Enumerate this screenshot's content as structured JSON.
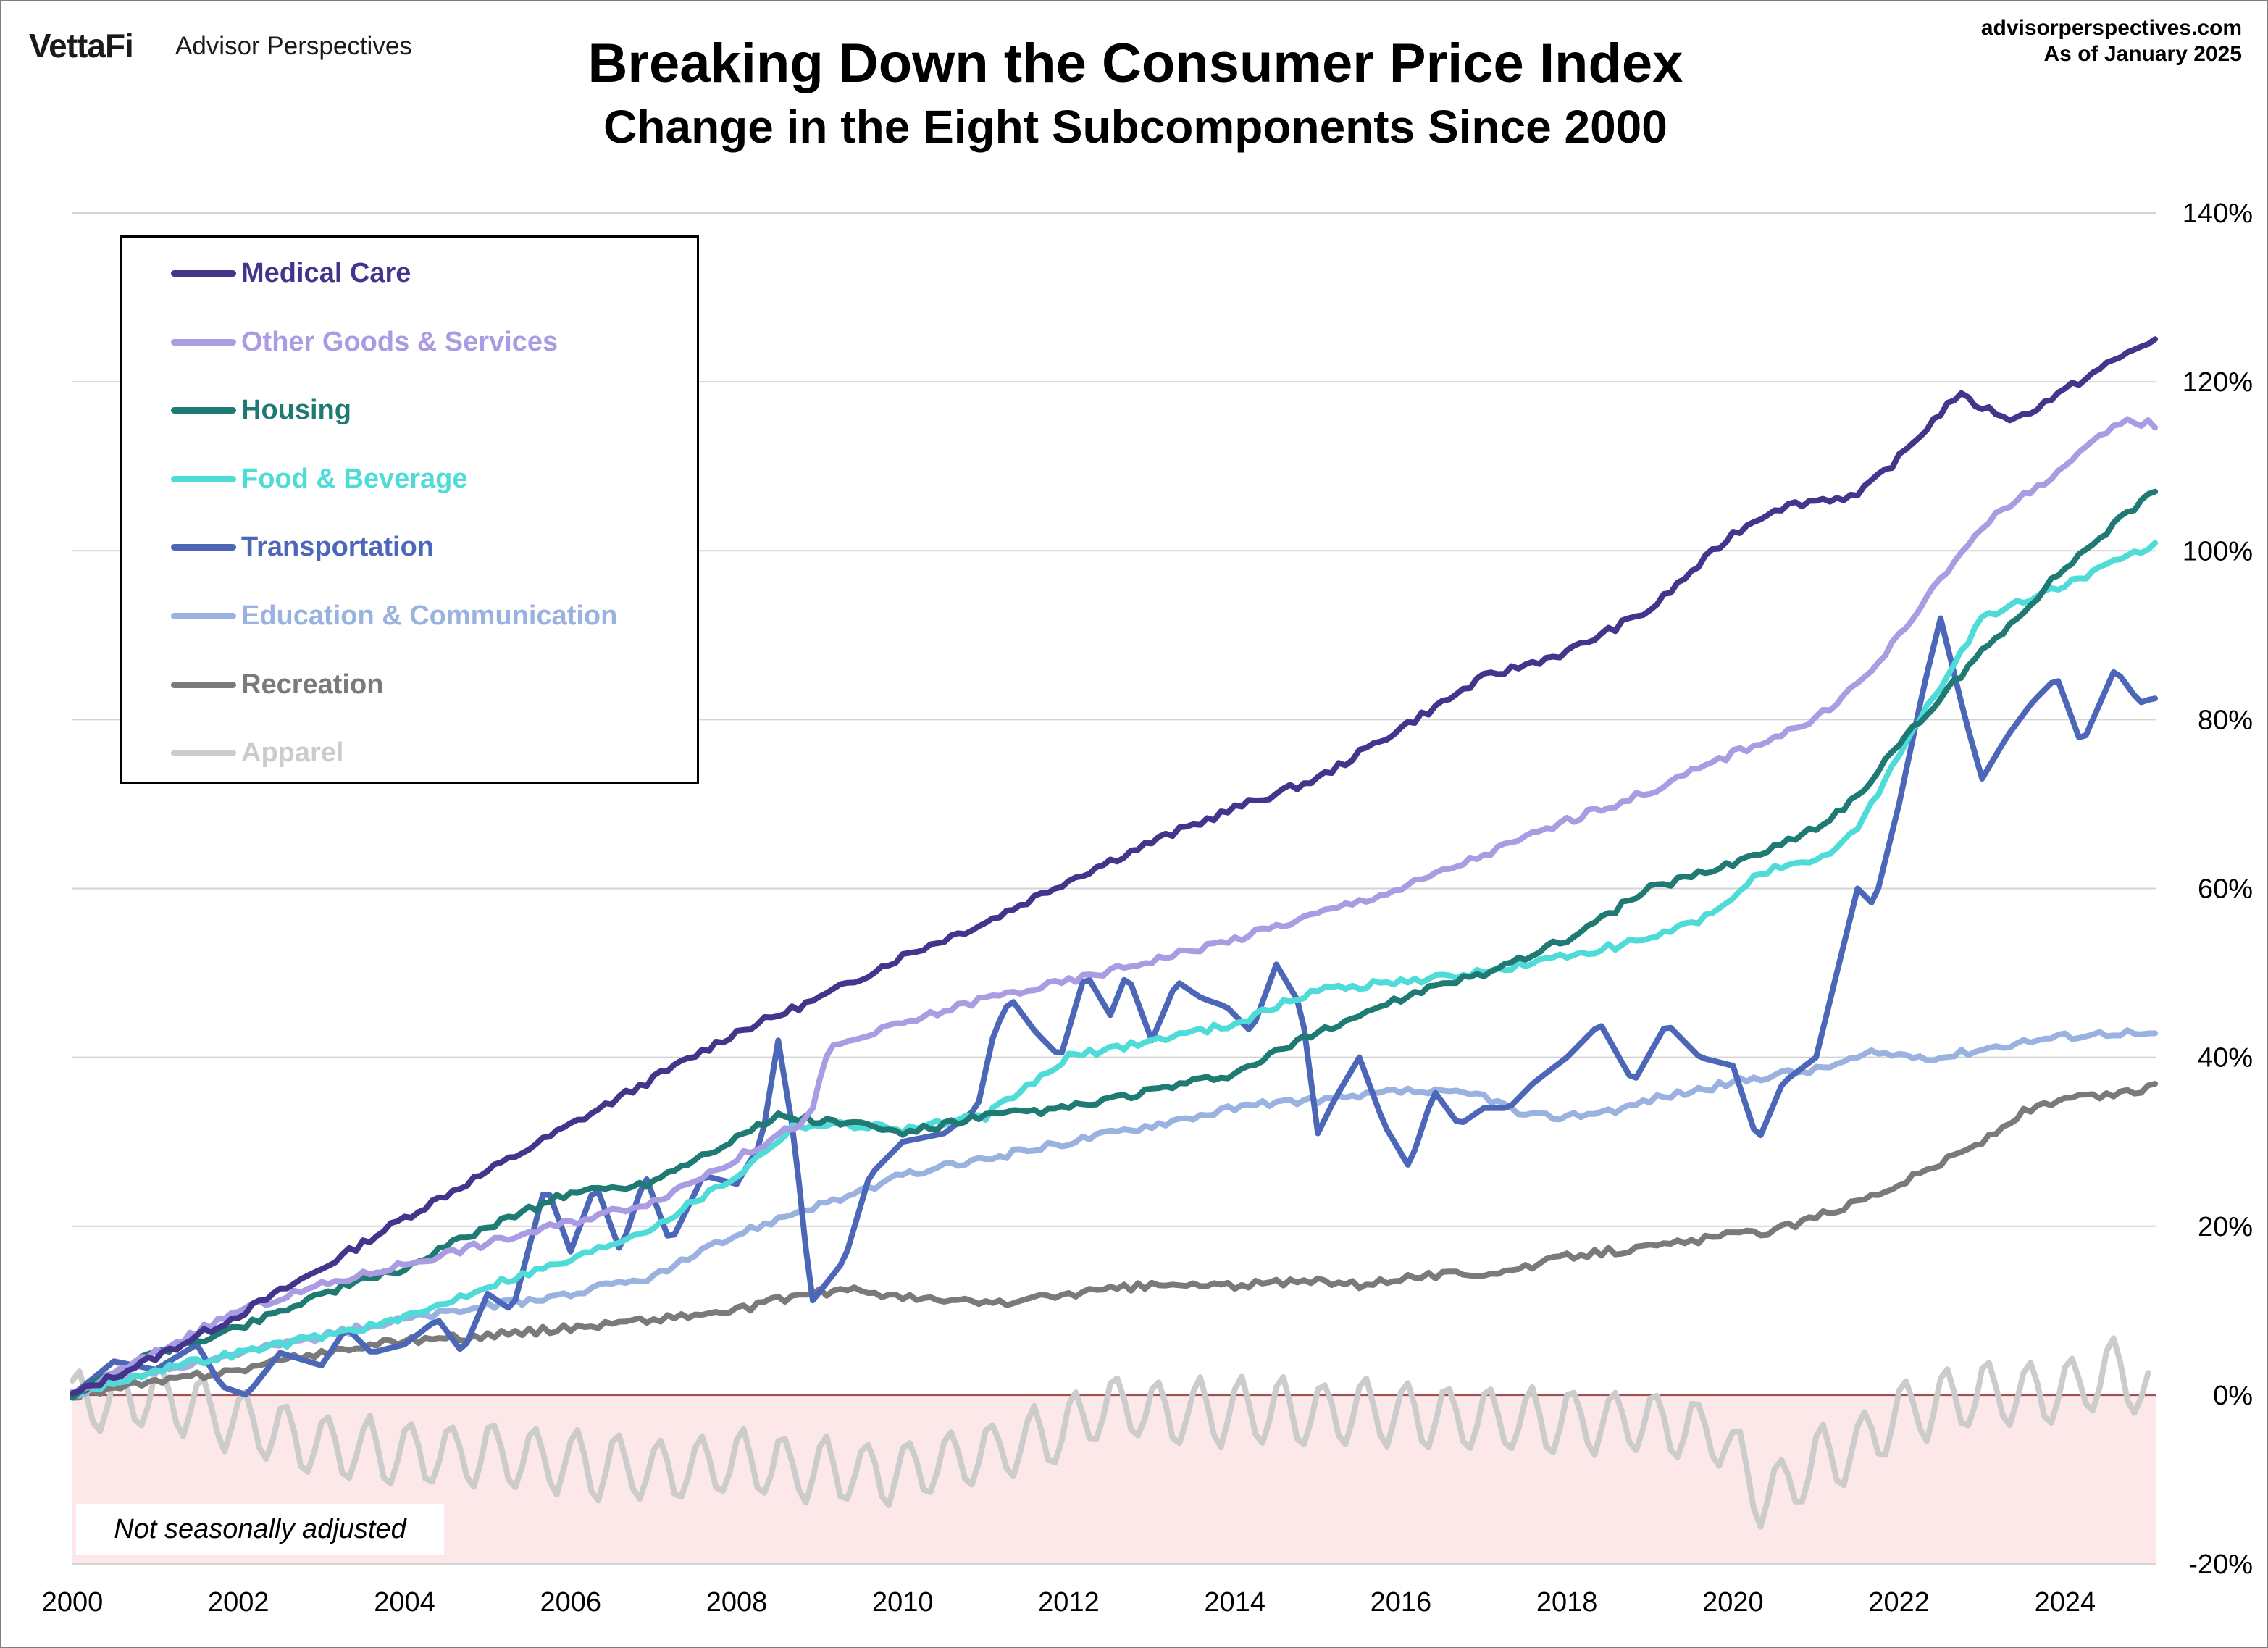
{
  "header": {
    "logo_brand": "VettaFi",
    "logo_product": "Advisor Perspectives",
    "source_site": "advisorperspectives.com",
    "as_of": "As of January 2025"
  },
  "note": "Not seasonally adjusted",
  "chart_data": {
    "type": "line",
    "title": "Breaking Down the Consumer Price Index",
    "subtitle": "Change in the Eight Subcomponents Since 2000",
    "xlabel": "",
    "ylabel": "",
    "xlim": [
      2000,
      2025.1
    ],
    "ylim": [
      -20,
      140
    ],
    "x_ticks": [
      2000,
      2002,
      2004,
      2006,
      2008,
      2010,
      2012,
      2014,
      2016,
      2018,
      2020,
      2022,
      2024
    ],
    "y_ticks": [
      -20,
      0,
      20,
      40,
      60,
      80,
      100,
      120,
      140
    ],
    "y_tick_labels": [
      "-20%",
      "0%",
      "20%",
      "40%",
      "60%",
      "80%",
      "100%",
      "120%",
      "140%"
    ],
    "y_axis_side": "right",
    "grid": "horizontal",
    "negative_region_shading": "#fce8e8",
    "legend_position": "top-left",
    "series": [
      {
        "name": "Medical Care",
        "color": "#43348c",
        "points": [
          [
            2000,
            0
          ],
          [
            2001,
            4.5
          ],
          [
            2002,
            9.5
          ],
          [
            2003,
            15
          ],
          [
            2004,
            21
          ],
          [
            2005,
            26.5
          ],
          [
            2006,
            32
          ],
          [
            2007,
            37.5
          ],
          [
            2008,
            43
          ],
          [
            2009,
            47
          ],
          [
            2010,
            52
          ],
          [
            2011,
            56
          ],
          [
            2012,
            61
          ],
          [
            2013,
            65.5
          ],
          [
            2014,
            69.5
          ],
          [
            2015,
            73
          ],
          [
            2016,
            79
          ],
          [
            2017,
            85
          ],
          [
            2018,
            88
          ],
          [
            2019,
            93
          ],
          [
            2020,
            102
          ],
          [
            2020.5,
            105
          ],
          [
            2021,
            106
          ],
          [
            2021.5,
            106.5
          ],
          [
            2022,
            111
          ],
          [
            2022.7,
            118.5
          ],
          [
            2023,
            117
          ],
          [
            2023.4,
            115.5
          ],
          [
            2024,
            119
          ],
          [
            2024.5,
            122
          ],
          [
            2025.05,
            125
          ]
        ]
      },
      {
        "name": "Other Goods & Services",
        "color": "#ab9be3",
        "points": [
          [
            2000,
            0
          ],
          [
            2001,
            5
          ],
          [
            2002,
            10
          ],
          [
            2003,
            13
          ],
          [
            2004,
            15.5
          ],
          [
            2005,
            18
          ],
          [
            2006,
            20.5
          ],
          [
            2007,
            23
          ],
          [
            2008,
            28
          ],
          [
            2008.9,
            33
          ],
          [
            2009.1,
            41
          ],
          [
            2010,
            44
          ],
          [
            2011,
            47
          ],
          [
            2012,
            49
          ],
          [
            2013,
            51.5
          ],
          [
            2014,
            54
          ],
          [
            2015,
            57
          ],
          [
            2016,
            60
          ],
          [
            2017,
            64
          ],
          [
            2018,
            68
          ],
          [
            2019,
            71.5
          ],
          [
            2020,
            76
          ],
          [
            2021,
            80
          ],
          [
            2021.7,
            86
          ],
          [
            2022,
            90
          ],
          [
            2023,
            103
          ],
          [
            2024,
            110
          ],
          [
            2024.7,
            115.5
          ],
          [
            2025.05,
            115
          ]
        ]
      },
      {
        "name": "Housing",
        "color": "#1e7a72",
        "points": [
          [
            2000,
            0
          ],
          [
            2001,
            5
          ],
          [
            2002,
            8
          ],
          [
            2003,
            12
          ],
          [
            2004,
            15
          ],
          [
            2005,
            20
          ],
          [
            2006,
            24
          ],
          [
            2006.9,
            25
          ],
          [
            2007.5,
            28
          ],
          [
            2008.5,
            33
          ],
          [
            2009.5,
            32
          ],
          [
            2010,
            31
          ],
          [
            2011,
            33
          ],
          [
            2012,
            34
          ],
          [
            2013,
            36
          ],
          [
            2014,
            38
          ],
          [
            2015,
            43
          ],
          [
            2016,
            47
          ],
          [
            2017,
            50
          ],
          [
            2018,
            54
          ],
          [
            2019,
            60
          ],
          [
            2020,
            63
          ],
          [
            2020.5,
            65
          ],
          [
            2021,
            67
          ],
          [
            2021.5,
            71
          ],
          [
            2022,
            77
          ],
          [
            2023,
            88
          ],
          [
            2024,
            98
          ],
          [
            2025.05,
            107
          ]
        ]
      },
      {
        "name": "Food & Beverage",
        "color": "#4fdcd8",
        "points": [
          [
            2000,
            0
          ],
          [
            2001,
            3
          ],
          [
            2002,
            5
          ],
          [
            2003,
            7
          ],
          [
            2004,
            9
          ],
          [
            2005,
            13
          ],
          [
            2006,
            16
          ],
          [
            2007,
            20
          ],
          [
            2008,
            26
          ],
          [
            2008.7,
            32
          ],
          [
            2009.5,
            32
          ],
          [
            2010,
            31.5
          ],
          [
            2011,
            33
          ],
          [
            2012,
            40
          ],
          [
            2013,
            42
          ],
          [
            2014,
            44
          ],
          [
            2015,
            48
          ],
          [
            2016,
            49
          ],
          [
            2017,
            50
          ],
          [
            2018,
            52
          ],
          [
            2019,
            54
          ],
          [
            2019.8,
            57
          ],
          [
            2020.3,
            62
          ],
          [
            2021,
            63
          ],
          [
            2021.5,
            67
          ],
          [
            2022,
            76
          ],
          [
            2022.5,
            84
          ],
          [
            2023,
            92
          ],
          [
            2024,
            96
          ],
          [
            2025.05,
            100.5
          ]
        ]
      },
      {
        "name": "Transportation",
        "color": "#4d67b8",
        "points": [
          [
            2000,
            0
          ],
          [
            2000.5,
            4
          ],
          [
            2001,
            3
          ],
          [
            2001.5,
            6
          ],
          [
            2001.8,
            1
          ],
          [
            2002.1,
            0
          ],
          [
            2002.5,
            5
          ],
          [
            2003,
            3.5
          ],
          [
            2003.3,
            8
          ],
          [
            2003.6,
            5
          ],
          [
            2004,
            6
          ],
          [
            2004.4,
            9
          ],
          [
            2004.7,
            5
          ],
          [
            2005,
            12
          ],
          [
            2005.3,
            10
          ],
          [
            2005.7,
            25
          ],
          [
            2006,
            17
          ],
          [
            2006.3,
            25
          ],
          [
            2006.6,
            17
          ],
          [
            2006.9,
            26
          ],
          [
            2007.2,
            18
          ],
          [
            2007.6,
            26
          ],
          [
            2008,
            25
          ],
          [
            2008.3,
            30
          ],
          [
            2008.5,
            42
          ],
          [
            2008.7,
            30
          ],
          [
            2008.9,
            11
          ],
          [
            2009.3,
            16
          ],
          [
            2009.6,
            26
          ],
          [
            2010,
            30
          ],
          [
            2010.5,
            31
          ],
          [
            2010.9,
            34
          ],
          [
            2011.1,
            43
          ],
          [
            2011.3,
            47
          ],
          [
            2011.6,
            43
          ],
          [
            2011.9,
            40
          ],
          [
            2012.2,
            50
          ],
          [
            2012.5,
            45
          ],
          [
            2012.7,
            50
          ],
          [
            2013,
            42
          ],
          [
            2013.3,
            49
          ],
          [
            2013.6,
            47
          ],
          [
            2013.9,
            46
          ],
          [
            2014.2,
            43
          ],
          [
            2014.5,
            51
          ],
          [
            2014.8,
            46
          ],
          [
            2015,
            31
          ],
          [
            2015.2,
            35
          ],
          [
            2015.5,
            40
          ],
          [
            2015.8,
            32
          ],
          [
            2016.1,
            27
          ],
          [
            2016.4,
            36
          ],
          [
            2016.7,
            32
          ],
          [
            2017,
            34
          ],
          [
            2017.3,
            34
          ],
          [
            2017.6,
            37
          ],
          [
            2018,
            40
          ],
          [
            2018.4,
            44
          ],
          [
            2018.8,
            37
          ],
          [
            2019.2,
            44
          ],
          [
            2019.6,
            40
          ],
          [
            2020,
            39
          ],
          [
            2020.3,
            30
          ],
          [
            2020.6,
            37
          ],
          [
            2021,
            40
          ],
          [
            2021.5,
            60
          ],
          [
            2021.7,
            58
          ],
          [
            2022,
            70
          ],
          [
            2022.3,
            84
          ],
          [
            2022.5,
            92
          ],
          [
            2022.8,
            80
          ],
          [
            2023,
            73
          ],
          [
            2023.3,
            78
          ],
          [
            2023.6,
            82
          ],
          [
            2023.9,
            85
          ],
          [
            2024.2,
            77
          ],
          [
            2024.6,
            86
          ],
          [
            2024.9,
            82
          ],
          [
            2025.05,
            82.5
          ]
        ]
      },
      {
        "name": "Education & Communication",
        "color": "#99b2e0",
        "points": [
          [
            2000,
            0
          ],
          [
            2001,
            3
          ],
          [
            2002,
            5
          ],
          [
            2003,
            7
          ],
          [
            2004,
            9
          ],
          [
            2005,
            10.5
          ],
          [
            2006,
            12
          ],
          [
            2007,
            14
          ],
          [
            2008,
            19
          ],
          [
            2008.8,
            22
          ],
          [
            2009.5,
            24
          ],
          [
            2010,
            26
          ],
          [
            2011,
            28
          ],
          [
            2012,
            30
          ],
          [
            2013,
            32
          ],
          [
            2014,
            34
          ],
          [
            2014.9,
            35
          ],
          [
            2015.3,
            35
          ],
          [
            2016,
            36
          ],
          [
            2017,
            35.5
          ],
          [
            2017.5,
            33
          ],
          [
            2018,
            33
          ],
          [
            2018.7,
            34
          ],
          [
            2019,
            35
          ],
          [
            2019.5,
            36
          ],
          [
            2020,
            37
          ],
          [
            2020.5,
            38
          ],
          [
            2021,
            38.5
          ],
          [
            2021.7,
            40.5
          ],
          [
            2022.5,
            40
          ],
          [
            2023,
            41
          ],
          [
            2023.6,
            42
          ],
          [
            2024,
            42.5
          ],
          [
            2024.7,
            43
          ],
          [
            2025.05,
            42.5
          ]
        ]
      },
      {
        "name": "Recreation",
        "color": "#7a7a7a",
        "points": [
          [
            2000,
            0
          ],
          [
            2001,
            1.5
          ],
          [
            2002,
            3
          ],
          [
            2003,
            5
          ],
          [
            2004,
            6.5
          ],
          [
            2005,
            7
          ],
          [
            2006,
            8
          ],
          [
            2007,
            9
          ],
          [
            2008,
            10
          ],
          [
            2008.8,
            12
          ],
          [
            2009.5,
            12.5
          ],
          [
            2010,
            11.5
          ],
          [
            2010.9,
            11
          ],
          [
            2011.3,
            11
          ],
          [
            2012,
            12
          ],
          [
            2013,
            13
          ],
          [
            2014,
            13
          ],
          [
            2015,
            13.5
          ],
          [
            2015.5,
            13
          ],
          [
            2016,
            14
          ],
          [
            2017,
            14.5
          ],
          [
            2017.5,
            15
          ],
          [
            2018,
            16.5
          ],
          [
            2019,
            17.5
          ],
          [
            2020,
            19
          ],
          [
            2020.5,
            19.5
          ],
          [
            2021,
            21
          ],
          [
            2022,
            25
          ],
          [
            2023,
            30
          ],
          [
            2023.5,
            33.5
          ],
          [
            2024,
            35
          ],
          [
            2024.5,
            35.5
          ],
          [
            2024.9,
            36
          ],
          [
            2025.05,
            37
          ]
        ]
      },
      {
        "name": "Apparel",
        "color": "#cccccc",
        "points": [
          [
            2000,
            -1
          ],
          [
            2001,
            0
          ],
          [
            2002,
            -3
          ],
          [
            2003,
            -6
          ],
          [
            2004,
            -7
          ],
          [
            2005,
            -7
          ],
          [
            2006,
            -8
          ],
          [
            2007,
            -9
          ],
          [
            2008,
            -8
          ],
          [
            2009,
            -9
          ],
          [
            2010,
            -9
          ],
          [
            2011,
            -7
          ],
          [
            2012,
            -4
          ],
          [
            2012.5,
            -1
          ],
          [
            2013,
            -2
          ],
          [
            2014,
            -2
          ],
          [
            2015,
            -2
          ],
          [
            2016,
            -2
          ],
          [
            2017,
            -3
          ],
          [
            2018,
            -3
          ],
          [
            2019,
            -3
          ],
          [
            2019.9,
            -5
          ],
          [
            2020.3,
            -12
          ],
          [
            2020.6,
            -11
          ],
          [
            2021,
            -8
          ],
          [
            2021.5,
            -6
          ],
          [
            2022,
            -2
          ],
          [
            2022.5,
            -1
          ],
          [
            2023,
            0
          ],
          [
            2024,
            0.5
          ],
          [
            2024.7,
            3
          ],
          [
            2025.05,
            -1
          ]
        ]
      }
    ]
  }
}
